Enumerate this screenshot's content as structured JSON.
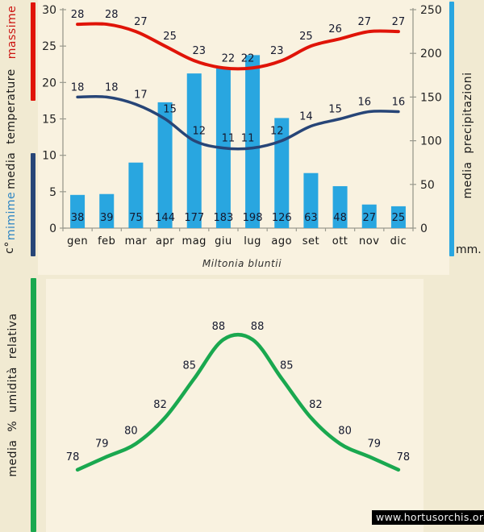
{
  "page": {
    "species_title": "Miltonia bluntii",
    "watermark": "www.hortusorchis.org",
    "background": "#f1ead2",
    "plot_background": "#f9f2e0"
  },
  "chart_data": [
    {
      "id": "climate",
      "type": "bar",
      "subtype": "combo-bar-lines",
      "title": "Miltonia bluntii",
      "categories": [
        "gen",
        "feb",
        "mar",
        "apr",
        "mag",
        "giu",
        "lug",
        "ago",
        "set",
        "ott",
        "nov",
        "dic"
      ],
      "series": [
        {
          "name": "massime",
          "type": "line",
          "axis": "temp",
          "color": "#e01408",
          "width": 4,
          "values": [
            28,
            28,
            27,
            25,
            23,
            22,
            22,
            23,
            25,
            26,
            27,
            27
          ]
        },
        {
          "name": "mimime",
          "type": "line",
          "axis": "temp",
          "color": "#274577",
          "width": 3.5,
          "values": [
            18,
            18,
            17,
            15,
            12,
            11,
            11,
            12,
            14,
            15,
            16,
            16
          ]
        },
        {
          "name": "media precipitazioni",
          "type": "bar",
          "axis": "precip",
          "color": "#29a6e0",
          "values": [
            38,
            39,
            75,
            144,
            177,
            183,
            198,
            126,
            63,
            48,
            27,
            25
          ]
        }
      ],
      "axes": {
        "temp": {
          "side": "left",
          "min": 0,
          "max": 30,
          "ticks": [
            0,
            5,
            10,
            15,
            20,
            25,
            30
          ]
        },
        "precip": {
          "side": "right",
          "min": 0,
          "max": 250,
          "ticks": [
            0,
            50,
            100,
            150,
            200,
            250
          ]
        }
      },
      "labels": {
        "massime": "massime",
        "temperature": "media  temperature",
        "minime": "mimime",
        "unit_temp": "c°",
        "precipitazioni": "media  precipitazioni",
        "unit_precip": "mm."
      },
      "legend_position": "left-and-right-color-bars",
      "grid": false
    },
    {
      "id": "humidity",
      "type": "line",
      "categories": [
        "gen",
        "feb",
        "mar",
        "apr",
        "mag",
        "giu",
        "lug",
        "ago",
        "set",
        "ott",
        "nov",
        "dic"
      ],
      "series": [
        {
          "name": "media % umidità relativa",
          "type": "line",
          "color": "#1aa84f",
          "width": 4.5,
          "labelGap": 12,
          "values": [
            78,
            79,
            80,
            82,
            85,
            88,
            88,
            85,
            82,
            80,
            79,
            78
          ]
        }
      ],
      "ylim": [
        76.5,
        89.5
      ],
      "labels": {
        "humidity": "media  %  umidità relativa"
      },
      "grid": false
    }
  ]
}
